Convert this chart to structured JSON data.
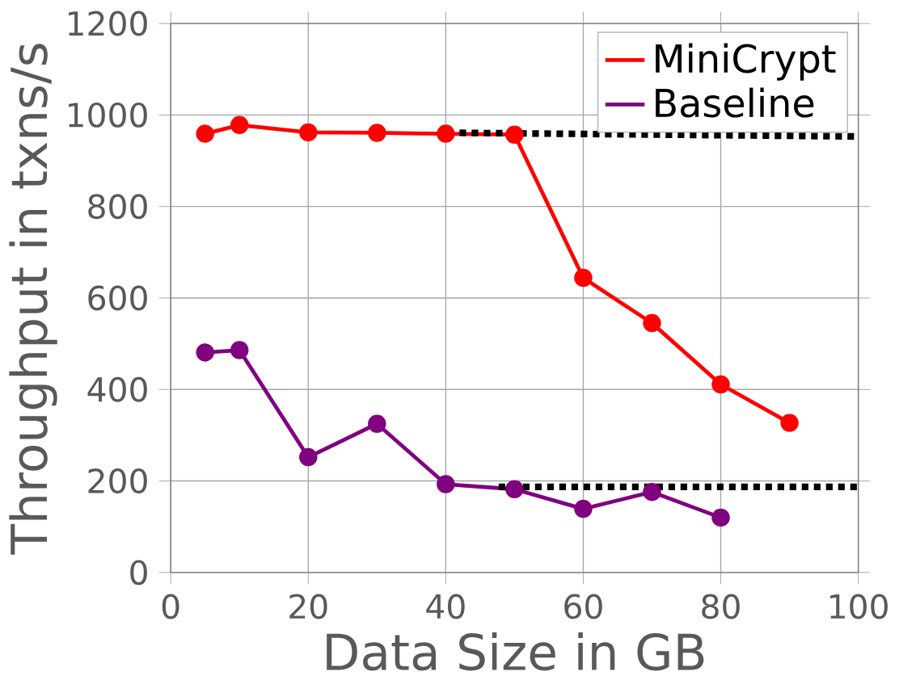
{
  "chart_data": {
    "type": "line",
    "xlabel": "Data Size in GB",
    "ylabel": "Throughput in txns/s",
    "xlim": [
      0,
      100
    ],
    "ylim": [
      0,
      1200
    ],
    "xticks": [
      0,
      20,
      40,
      60,
      80,
      100
    ],
    "yticks": [
      0,
      200,
      400,
      600,
      800,
      1000,
      1200
    ],
    "grid": true,
    "legend": "top right",
    "marker": "circle",
    "line_style": "solid",
    "x": [
      5,
      10,
      20,
      30,
      40,
      50,
      60,
      70,
      80,
      90
    ],
    "series": [
      {
        "name": "MiniCrypt",
        "color": "#ff0000",
        "values": [
          959,
          978,
          962,
          961,
          959,
          957,
          644,
          545,
          411,
          327
        ]
      },
      {
        "name": "Baseline",
        "color": "#800080",
        "values": [
          481,
          486,
          252,
          325,
          193,
          182,
          139,
          176,
          120,
          null
        ]
      },
      {
        "color": "#000000",
        "x": [
          42,
          100
        ],
        "values": [
          961,
          953
        ],
        "marker": "none",
        "line_style": "dotted"
      },
      {
        "color": "#000000",
        "x": [
          47.7,
          100
        ],
        "values": [
          187,
          187
        ],
        "marker": "none",
        "line_style": "dotted"
      }
    ]
  }
}
